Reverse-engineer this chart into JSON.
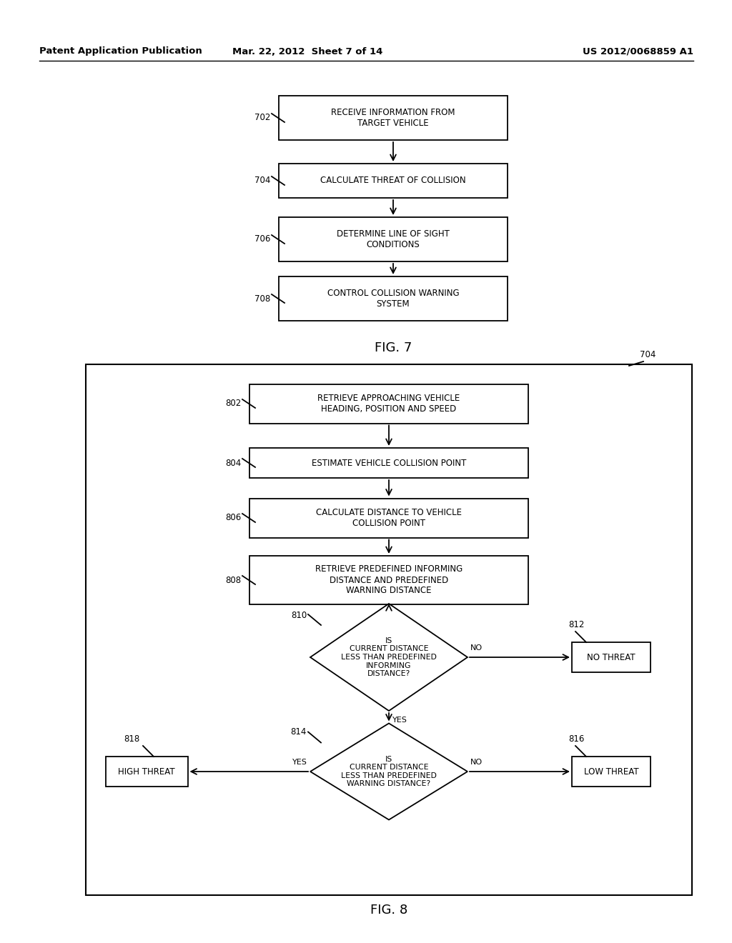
{
  "background_color": "#ffffff",
  "header_left": "Patent Application Publication",
  "header_center": "Mar. 22, 2012  Sheet 7 of 14",
  "header_right": "US 2012/0068859 A1",
  "fig7_title": "FIG. 7",
  "fig8_title": "FIG. 8"
}
